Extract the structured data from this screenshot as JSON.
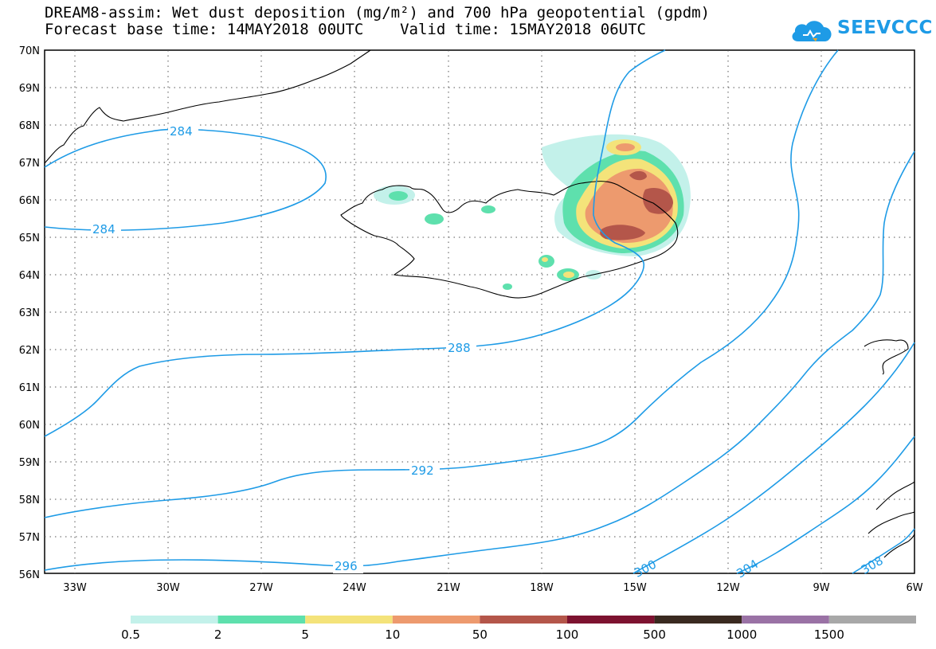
{
  "title": {
    "line1": "DREAM8-assim: Wet dust deposition (mg/m²) and 700 hPa geopotential (gpdm)",
    "line2": "Forecast base time: 14MAY2018 00UTC    Valid time: 15MAY2018 06UTC"
  },
  "logo": {
    "text": "SEEVCCC",
    "icon": "cloud-icon",
    "color": "#1e9be6"
  },
  "map": {
    "lat_labels": [
      "70N",
      "69N",
      "68N",
      "67N",
      "66N",
      "65N",
      "64N",
      "63N",
      "62N",
      "61N",
      "60N",
      "59N",
      "58N",
      "57N",
      "56N"
    ],
    "lon_labels": [
      "33W",
      "30W",
      "27W",
      "24W",
      "21W",
      "18W",
      "15W",
      "12W",
      "9W",
      "6W"
    ],
    "contour_color": "#1e9be6",
    "contour_labels": [
      {
        "text": "284",
        "id": "lbl-284a"
      },
      {
        "text": "284",
        "id": "lbl-284b"
      },
      {
        "text": "288",
        "id": "lbl-288"
      },
      {
        "text": "292",
        "id": "lbl-292"
      },
      {
        "text": "296",
        "id": "lbl-296"
      },
      {
        "text": "300",
        "id": "lbl-300"
      },
      {
        "text": "304",
        "id": "lbl-304"
      },
      {
        "text": "308",
        "id": "lbl-308"
      }
    ]
  },
  "legend": {
    "colors": [
      "#c3f1ea",
      "#5ee0ad",
      "#f4e37a",
      "#ed9a6e",
      "#b4564a",
      "#7d1230",
      "#3a2a20",
      "#9a72a5",
      "#a8a8a8"
    ],
    "labels": [
      "0.5",
      "2",
      "5",
      "10",
      "50",
      "100",
      "500",
      "1000",
      "1500"
    ]
  }
}
